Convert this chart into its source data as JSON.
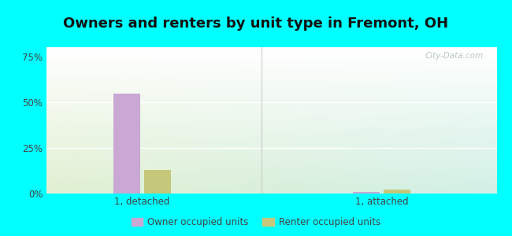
{
  "title": "Owners and renters by unit type in Fremont, OH",
  "categories": [
    "1, detached",
    "1, attached"
  ],
  "owner_values": [
    0.545,
    0.008
  ],
  "renter_values": [
    0.13,
    0.022
  ],
  "owner_color": "#c9a8d4",
  "renter_color": "#c5c87a",
  "ylim": [
    0,
    0.8
  ],
  "yticks": [
    0.0,
    0.25,
    0.5,
    0.75
  ],
  "ytick_labels": [
    "0%",
    "25%",
    "50%",
    "75%"
  ],
  "outer_background": "#00ffff",
  "watermark": "City-Data.com",
  "bar_width": 0.28,
  "group_positions": [
    1.0,
    3.5
  ],
  "xlim": [
    0,
    4.7
  ],
  "title_fontsize": 13,
  "legend_owner_label": "Owner occupied units",
  "legend_renter_label": "Renter occupied units"
}
